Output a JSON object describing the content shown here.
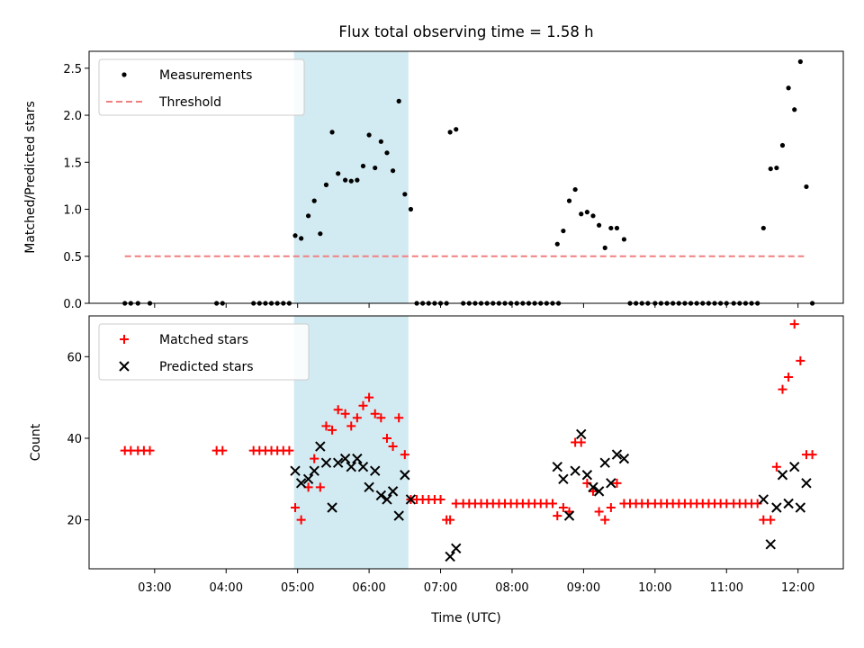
{
  "chart_data": [
    {
      "type": "scatter",
      "title": "Flux total observing time = 1.58 h",
      "xlabel": "",
      "ylabel": "Matched/Predicted stars",
      "ylim": [
        0,
        2.68
      ],
      "xlim": [
        "02:05",
        "12:38"
      ],
      "yticks": [
        "0.0",
        "0.5",
        "1.0",
        "1.5",
        "2.0",
        "2.5"
      ],
      "legend_position": "top-left",
      "shaded_interval": {
        "start": "04:57",
        "end": "06:33",
        "color": "#add8e6"
      },
      "series": [
        {
          "name": "Measurements",
          "marker": "dot",
          "color": "#000000",
          "points": [
            [
              "02:35",
              0
            ],
            [
              "02:40",
              0
            ],
            [
              "02:46",
              0
            ],
            [
              "02:56",
              0
            ],
            [
              "03:52",
              0
            ],
            [
              "03:57",
              0
            ],
            [
              "04:23",
              0
            ],
            [
              "04:28",
              0
            ],
            [
              "04:33",
              0
            ],
            [
              "04:38",
              0
            ],
            [
              "04:43",
              0
            ],
            [
              "04:48",
              0
            ],
            [
              "04:53",
              0
            ],
            [
              "04:58",
              0.72
            ],
            [
              "05:03",
              0.69
            ],
            [
              "05:09",
              0.93
            ],
            [
              "05:14",
              1.09
            ],
            [
              "05:19",
              0.74
            ],
            [
              "05:24",
              1.26
            ],
            [
              "05:29",
              1.82
            ],
            [
              "05:34",
              1.38
            ],
            [
              "05:40",
              1.31
            ],
            [
              "05:45",
              1.3
            ],
            [
              "05:50",
              1.31
            ],
            [
              "05:55",
              1.46
            ],
            [
              "06:00",
              1.79
            ],
            [
              "06:05",
              1.44
            ],
            [
              "06:10",
              1.72
            ],
            [
              "06:15",
              1.6
            ],
            [
              "06:20",
              1.41
            ],
            [
              "06:25",
              2.15
            ],
            [
              "06:30",
              1.16
            ],
            [
              "06:35",
              1.0
            ],
            [
              "06:40",
              0
            ],
            [
              "06:45",
              0
            ],
            [
              "06:50",
              0
            ],
            [
              "06:55",
              0
            ],
            [
              "07:00",
              0
            ],
            [
              "07:05",
              0
            ],
            [
              "07:08",
              1.82
            ],
            [
              "07:13",
              1.85
            ],
            [
              "07:19",
              0
            ],
            [
              "07:24",
              0
            ],
            [
              "07:29",
              0
            ],
            [
              "07:34",
              0
            ],
            [
              "07:39",
              0
            ],
            [
              "07:44",
              0
            ],
            [
              "07:49",
              0
            ],
            [
              "07:54",
              0
            ],
            [
              "07:59",
              0
            ],
            [
              "08:04",
              0
            ],
            [
              "08:09",
              0
            ],
            [
              "08:14",
              0
            ],
            [
              "08:19",
              0
            ],
            [
              "08:24",
              0
            ],
            [
              "08:29",
              0
            ],
            [
              "08:34",
              0
            ],
            [
              "08:39",
              0
            ],
            [
              "08:38",
              0.63
            ],
            [
              "08:43",
              0.77
            ],
            [
              "08:48",
              1.09
            ],
            [
              "08:53",
              1.21
            ],
            [
              "08:58",
              0.95
            ],
            [
              "09:03",
              0.97
            ],
            [
              "09:08",
              0.93
            ],
            [
              "09:13",
              0.83
            ],
            [
              "09:18",
              0.59
            ],
            [
              "09:23",
              0.8
            ],
            [
              "09:28",
              0.8
            ],
            [
              "09:34",
              0.68
            ],
            [
              "09:39",
              0
            ],
            [
              "09:44",
              0
            ],
            [
              "09:49",
              0
            ],
            [
              "09:54",
              0
            ],
            [
              "10:00",
              0
            ],
            [
              "10:05",
              0
            ],
            [
              "10:10",
              0
            ],
            [
              "10:15",
              0
            ],
            [
              "10:20",
              0
            ],
            [
              "10:25",
              0
            ],
            [
              "10:30",
              0
            ],
            [
              "10:35",
              0
            ],
            [
              "10:40",
              0
            ],
            [
              "10:45",
              0
            ],
            [
              "10:50",
              0
            ],
            [
              "10:55",
              0
            ],
            [
              "11:00",
              0
            ],
            [
              "11:06",
              0
            ],
            [
              "11:11",
              0
            ],
            [
              "11:16",
              0
            ],
            [
              "11:21",
              0
            ],
            [
              "11:26",
              0
            ],
            [
              "11:31",
              0.8
            ],
            [
              "11:37",
              1.43
            ],
            [
              "11:42",
              1.44
            ],
            [
              "11:47",
              1.68
            ],
            [
              "11:52",
              2.29
            ],
            [
              "11:57",
              2.06
            ],
            [
              "12:02",
              2.57
            ],
            [
              "12:07",
              1.24
            ],
            [
              "12:12",
              0
            ]
          ]
        },
        {
          "name": "Threshold",
          "marker": "dashed-line",
          "color": "#f08080",
          "points": [
            [
              "02:35",
              0.5
            ],
            [
              "12:05",
              0.5
            ]
          ]
        }
      ]
    },
    {
      "type": "scatter",
      "title": "",
      "xlabel": "Time (UTC)",
      "ylabel": "Count",
      "ylim": [
        8,
        70
      ],
      "xlim": [
        "02:05",
        "12:38"
      ],
      "yticks": [
        "20",
        "40",
        "60"
      ],
      "xticks": [
        "03:00",
        "04:00",
        "05:00",
        "06:00",
        "07:00",
        "08:00",
        "09:00",
        "10:00",
        "11:00",
        "12:00"
      ],
      "legend_position": "top-left",
      "shaded_interval": {
        "start": "04:57",
        "end": "06:33",
        "color": "#add8e6"
      },
      "series": [
        {
          "name": "Matched stars",
          "marker": "plus",
          "color": "#ff0000",
          "points": [
            [
              "02:35",
              37
            ],
            [
              "02:40",
              37
            ],
            [
              "02:46",
              37
            ],
            [
              "02:51",
              37
            ],
            [
              "02:56",
              37
            ],
            [
              "03:52",
              37
            ],
            [
              "03:57",
              37
            ],
            [
              "04:23",
              37
            ],
            [
              "04:28",
              37
            ],
            [
              "04:33",
              37
            ],
            [
              "04:38",
              37
            ],
            [
              "04:43",
              37
            ],
            [
              "04:48",
              37
            ],
            [
              "04:53",
              37
            ],
            [
              "04:58",
              23
            ],
            [
              "05:03",
              20
            ],
            [
              "05:09",
              28
            ],
            [
              "05:14",
              35
            ],
            [
              "05:19",
              28
            ],
            [
              "05:24",
              43
            ],
            [
              "05:29",
              42
            ],
            [
              "05:34",
              47
            ],
            [
              "05:40",
              46
            ],
            [
              "05:45",
              43
            ],
            [
              "05:50",
              45
            ],
            [
              "05:55",
              48
            ],
            [
              "06:00",
              50
            ],
            [
              "06:05",
              46
            ],
            [
              "06:10",
              45
            ],
            [
              "06:15",
              40
            ],
            [
              "06:20",
              38
            ],
            [
              "06:25",
              45
            ],
            [
              "06:30",
              36
            ],
            [
              "06:35",
              25
            ],
            [
              "06:40",
              25
            ],
            [
              "06:45",
              25
            ],
            [
              "06:50",
              25
            ],
            [
              "06:55",
              25
            ],
            [
              "07:00",
              25
            ],
            [
              "07:05",
              20
            ],
            [
              "07:08",
              20
            ],
            [
              "07:13",
              24
            ],
            [
              "07:19",
              24
            ],
            [
              "07:24",
              24
            ],
            [
              "07:29",
              24
            ],
            [
              "07:34",
              24
            ],
            [
              "07:39",
              24
            ],
            [
              "07:44",
              24
            ],
            [
              "07:49",
              24
            ],
            [
              "07:54",
              24
            ],
            [
              "07:59",
              24
            ],
            [
              "08:04",
              24
            ],
            [
              "08:09",
              24
            ],
            [
              "08:14",
              24
            ],
            [
              "08:19",
              24
            ],
            [
              "08:24",
              24
            ],
            [
              "08:29",
              24
            ],
            [
              "08:34",
              24
            ],
            [
              "08:38",
              21
            ],
            [
              "08:43",
              23
            ],
            [
              "08:48",
              22
            ],
            [
              "08:53",
              39
            ],
            [
              "08:58",
              39
            ],
            [
              "09:03",
              29
            ],
            [
              "09:08",
              27
            ],
            [
              "09:13",
              22
            ],
            [
              "09:18",
              20
            ],
            [
              "09:23",
              23
            ],
            [
              "09:28",
              29
            ],
            [
              "09:34",
              24
            ],
            [
              "09:39",
              24
            ],
            [
              "09:44",
              24
            ],
            [
              "09:49",
              24
            ],
            [
              "09:54",
              24
            ],
            [
              "10:00",
              24
            ],
            [
              "10:05",
              24
            ],
            [
              "10:10",
              24
            ],
            [
              "10:15",
              24
            ],
            [
              "10:20",
              24
            ],
            [
              "10:25",
              24
            ],
            [
              "10:30",
              24
            ],
            [
              "10:35",
              24
            ],
            [
              "10:40",
              24
            ],
            [
              "10:45",
              24
            ],
            [
              "10:50",
              24
            ],
            [
              "10:55",
              24
            ],
            [
              "11:00",
              24
            ],
            [
              "11:06",
              24
            ],
            [
              "11:11",
              24
            ],
            [
              "11:16",
              24
            ],
            [
              "11:21",
              24
            ],
            [
              "11:26",
              24
            ],
            [
              "11:31",
              20
            ],
            [
              "11:37",
              20
            ],
            [
              "11:42",
              33
            ],
            [
              "11:47",
              52
            ],
            [
              "11:52",
              55
            ],
            [
              "11:57",
              68
            ],
            [
              "12:02",
              59
            ],
            [
              "12:07",
              36
            ],
            [
              "12:12",
              36
            ]
          ]
        },
        {
          "name": "Predicted stars",
          "marker": "x",
          "color": "#000000",
          "points": [
            [
              "04:58",
              32
            ],
            [
              "05:03",
              29
            ],
            [
              "05:09",
              30
            ],
            [
              "05:14",
              32
            ],
            [
              "05:19",
              38
            ],
            [
              "05:24",
              34
            ],
            [
              "05:29",
              23
            ],
            [
              "05:34",
              34
            ],
            [
              "05:40",
              35
            ],
            [
              "05:45",
              33
            ],
            [
              "05:50",
              35
            ],
            [
              "05:55",
              33
            ],
            [
              "06:00",
              28
            ],
            [
              "06:05",
              32
            ],
            [
              "06:10",
              26
            ],
            [
              "06:15",
              25
            ],
            [
              "06:20",
              27
            ],
            [
              "06:25",
              21
            ],
            [
              "06:30",
              31
            ],
            [
              "06:35",
              25
            ],
            [
              "07:08",
              11
            ],
            [
              "07:13",
              13
            ],
            [
              "08:38",
              33
            ],
            [
              "08:43",
              30
            ],
            [
              "08:48",
              21
            ],
            [
              "08:53",
              32
            ],
            [
              "08:58",
              41
            ],
            [
              "09:03",
              31
            ],
            [
              "09:08",
              28
            ],
            [
              "09:13",
              27
            ],
            [
              "09:18",
              34
            ],
            [
              "09:23",
              29
            ],
            [
              "09:28",
              36
            ],
            [
              "09:34",
              35
            ],
            [
              "11:31",
              25
            ],
            [
              "11:37",
              14
            ],
            [
              "11:42",
              23
            ],
            [
              "11:47",
              31
            ],
            [
              "11:52",
              24
            ],
            [
              "11:57",
              33
            ],
            [
              "12:02",
              23
            ],
            [
              "12:07",
              29
            ]
          ]
        }
      ]
    }
  ]
}
